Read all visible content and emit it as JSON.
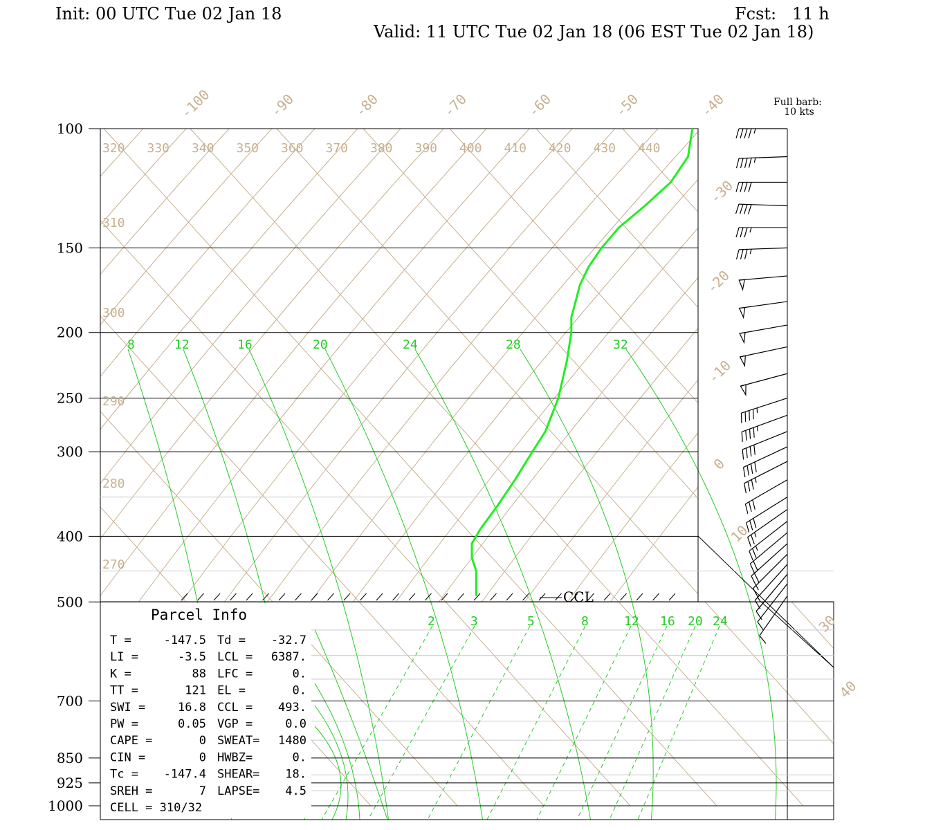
{
  "header": {
    "init": "Init: 00 UTC Tue 02 Jan 18",
    "fcst": "Fcst:   11 h",
    "valid": "Valid: 11 UTC Tue 02 Jan 18 (06 EST Tue 02 Jan 18)"
  },
  "legend": {
    "line1": "Full barb:",
    "line2": "10 kts"
  },
  "parcel_info": {
    "title": "Parcel Info",
    "rows": [
      [
        "T  =",
        "-147.5",
        "Td =",
        "-32.7"
      ],
      [
        "LI =",
        "-3.5",
        "LCL =",
        "6387."
      ],
      [
        "K  =",
        "88",
        "LFC =",
        "0."
      ],
      [
        "TT =",
        "121",
        "EL  =",
        "0."
      ],
      [
        "SWI =",
        "16.8",
        "CCL =",
        "493."
      ],
      [
        "PW =",
        "0.05",
        "VGP =",
        "0.0"
      ],
      [
        "CAPE =",
        "0",
        "SWEAT=",
        "1480"
      ],
      [
        "CIN =",
        "0",
        "HWBZ=",
        "0."
      ],
      [
        "Tc =",
        "-147.4",
        "SHEAR=",
        "18."
      ],
      [
        "SREH =",
        "7",
        "LAPSE=",
        "4.5"
      ],
      [
        "CELL = 310/32",
        "",
        "",
        ""
      ]
    ]
  },
  "ccl_label": "CCL",
  "colors": {
    "isotherm": "#c8b090",
    "dewpoint": "#22ee22",
    "mixing": "#22cc22",
    "grid": "#000000"
  },
  "chart_data": {
    "type": "line",
    "pressure_levels": [
      "100",
      "150",
      "200",
      "250",
      "300",
      "400",
      "500",
      "700",
      "850",
      "925",
      "1000"
    ],
    "isotherm_labels": [
      "-100",
      "-90",
      "-80",
      "-70",
      "-60",
      "-50",
      "-40",
      "-30",
      "-20",
      "-10",
      "0",
      "10",
      "30",
      "40"
    ],
    "theta_labels_top": [
      "320",
      "330",
      "340",
      "350",
      "360",
      "370",
      "380",
      "390",
      "400",
      "410",
      "420",
      "430",
      "440"
    ],
    "theta_labels_side": [
      "310",
      "300",
      "290",
      "280",
      "270"
    ],
    "mixing_ratio_upper": [
      "8",
      "12",
      "16",
      "20",
      "24",
      "28",
      "32"
    ],
    "mixing_ratio_lower": [
      "2",
      "3",
      "5",
      "8",
      "12",
      "16",
      "20",
      "24"
    ],
    "dewpoint_profile": {
      "p": [
        100,
        110,
        120,
        130,
        140,
        150,
        160,
        170,
        180,
        190,
        200,
        220,
        250,
        280,
        300,
        330,
        360,
        390,
        410,
        430,
        450,
        470,
        490
      ],
      "td": [
        -40.5,
        -41,
        -43,
        -46,
        -49,
        -51,
        -52.5,
        -53.5,
        -54,
        -54.5,
        -54.5,
        -55,
        -56,
        -57.5,
        -59,
        -61,
        -63,
        -65,
        -66,
        -66,
        -65.5,
        -65.5,
        -65.5
      ]
    },
    "wind_barbs": {
      "p": [
        100,
        110,
        120,
        130,
        140,
        150,
        165,
        180,
        195,
        210,
        230,
        250,
        265,
        280,
        295,
        310,
        330,
        350,
        365,
        380,
        395,
        410,
        425,
        440,
        455,
        470,
        490
      ],
      "speed_kt": [
        45,
        45,
        40,
        40,
        35,
        35,
        50,
        50,
        50,
        50,
        50,
        45,
        45,
        40,
        40,
        35,
        30,
        30,
        25,
        25,
        20,
        20,
        15,
        15,
        10,
        10,
        10
      ],
      "dir_deg": [
        270,
        268,
        270,
        272,
        270,
        268,
        265,
        262,
        260,
        258,
        255,
        252,
        250,
        248,
        245,
        243,
        240,
        238,
        235,
        232,
        230,
        228,
        225,
        222,
        220,
        218,
        215
      ]
    }
  }
}
